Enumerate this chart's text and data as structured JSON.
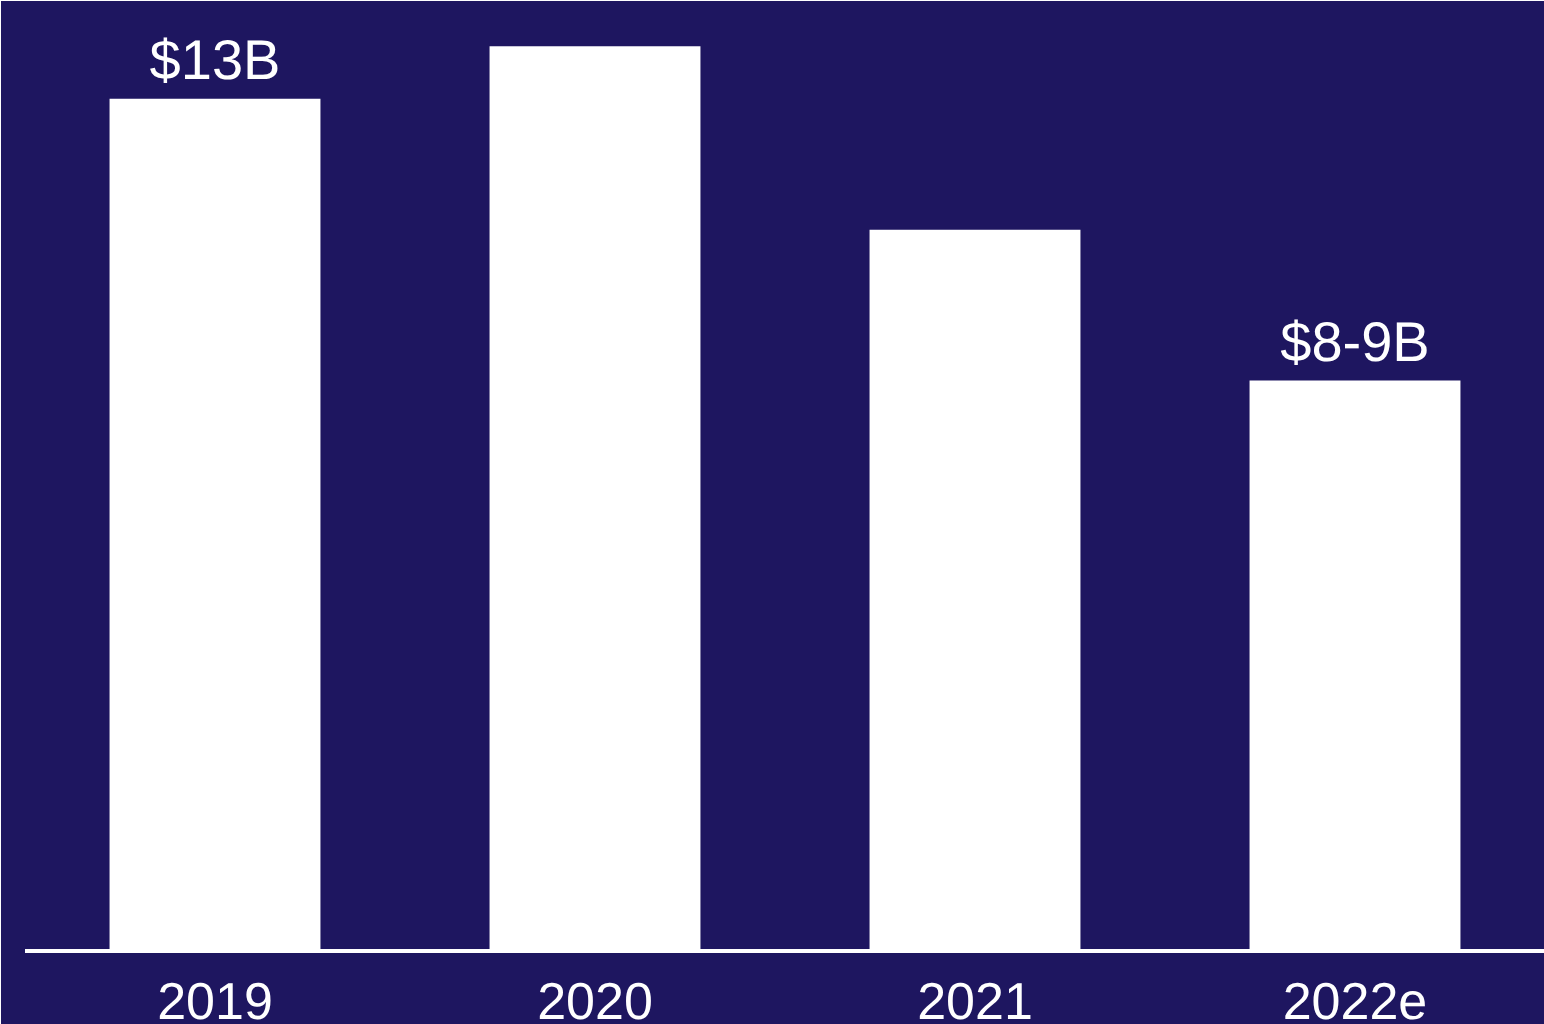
{
  "chart_data": {
    "type": "bar",
    "categories": [
      "2019",
      "2020",
      "2021",
      "2022e"
    ],
    "values": [
      13,
      13.8,
      11,
      8.7
    ],
    "value_labels": [
      "$13B",
      null,
      null,
      "$8-9B"
    ],
    "color": "#ffffff"
  }
}
